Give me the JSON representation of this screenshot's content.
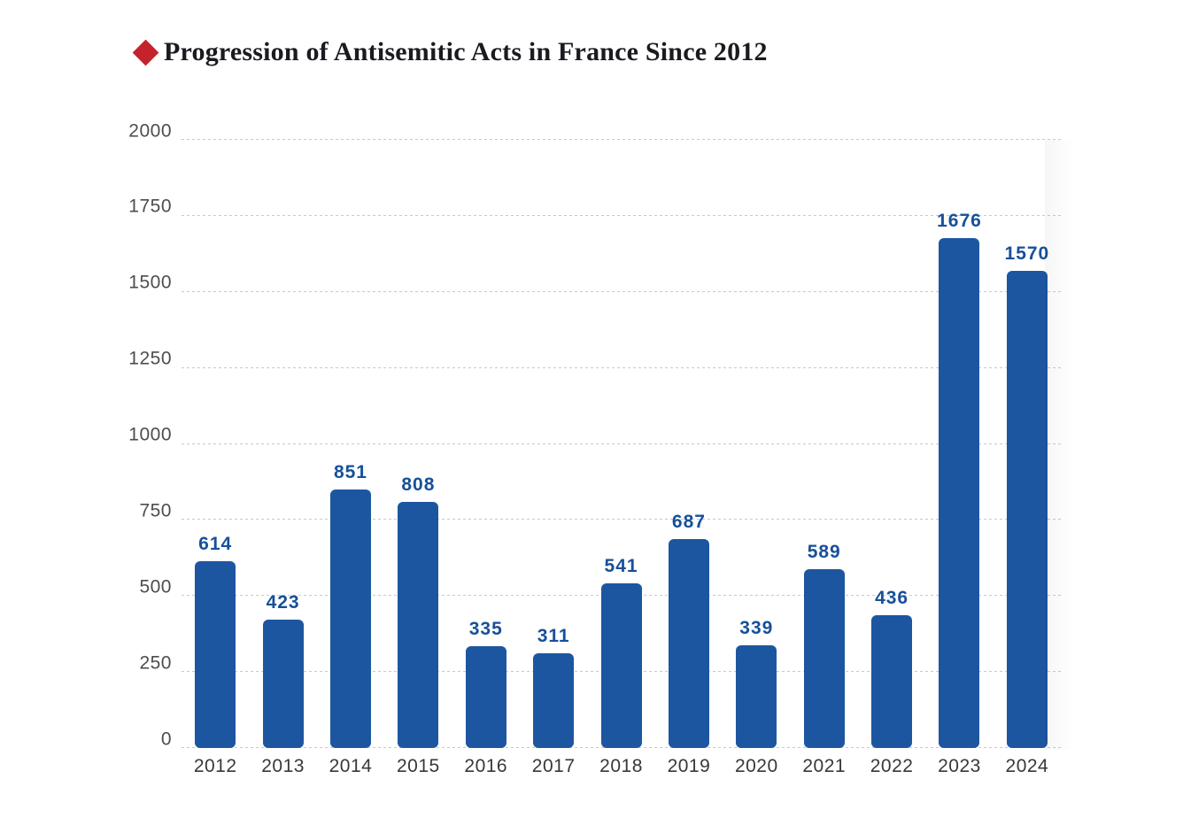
{
  "chart_data": {
    "type": "bar",
    "title": "Progression of Antisemitic Acts in France Since 2012",
    "categories": [
      "2012",
      "2013",
      "2014",
      "2015",
      "2016",
      "2017",
      "2018",
      "2019",
      "2020",
      "2021",
      "2022",
      "2023",
      "2024"
    ],
    "values": [
      614,
      423,
      851,
      808,
      335,
      311,
      541,
      687,
      339,
      589,
      436,
      1676,
      1570
    ],
    "xlabel": "",
    "ylabel": "",
    "ylim": [
      0,
      2000
    ],
    "yticks": [
      0,
      250,
      500,
      750,
      1000,
      1250,
      1500,
      1750,
      2000
    ],
    "grid": "horizontal dashed",
    "legend": "none",
    "colors": {
      "bar": "#1d56a0",
      "value_label": "#17509a",
      "y_tick_label": "#4d4d4d",
      "x_tick_label": "#383838",
      "gridline": "#c9c9c9",
      "title": "#1a1a20",
      "bullet": "#c5232b",
      "background": "#ffffff"
    }
  }
}
